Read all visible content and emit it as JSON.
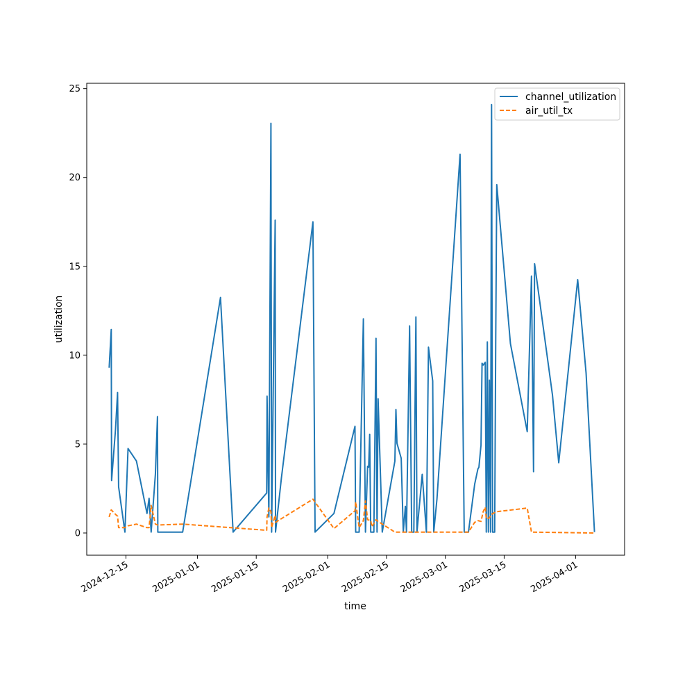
{
  "chart_data": {
    "type": "line",
    "title": "",
    "xlabel": "time",
    "ylabel": "utilization",
    "x_ticks": [
      "2024-12-15",
      "2025-01-01",
      "2025-01-15",
      "2025-02-01",
      "2025-02-15",
      "2025-03-01",
      "2025-03-15",
      "2025-04-01"
    ],
    "y_ticks": [
      0,
      5,
      10,
      15,
      20,
      25
    ],
    "xlim": [
      "2024-12-05T16:00",
      "2025-04-12T16:00"
    ],
    "ylim": [
      -1.25,
      25.3
    ],
    "legend_position": "top-right",
    "grid": false,
    "series": [
      {
        "name": "channel_utilization",
        "color": "#1f77b4",
        "style": "solid",
        "points": [
          [
            "2024-12-11T00:00",
            9.3
          ],
          [
            "2024-12-11T12:00",
            11.45
          ],
          [
            "2024-12-11T14:00",
            2.95
          ],
          [
            "2024-12-12T12:00",
            5.8
          ],
          [
            "2024-12-13T00:00",
            7.9
          ],
          [
            "2024-12-13T06:00",
            2.6
          ],
          [
            "2024-12-14T18:00",
            0.05
          ],
          [
            "2024-12-15T12:00",
            4.75
          ],
          [
            "2024-12-17T12:00",
            4.05
          ],
          [
            "2024-12-20T00:00",
            1.1
          ],
          [
            "2024-12-20T12:00",
            1.95
          ],
          [
            "2024-12-21T00:00",
            0.05
          ],
          [
            "2024-12-22T00:00",
            3.3
          ],
          [
            "2024-12-22T12:00",
            6.55
          ],
          [
            "2024-12-22T14:00",
            0.05
          ],
          [
            "2024-12-28T12:00",
            0.05
          ],
          [
            "2025-01-06T12:00",
            13.25
          ],
          [
            "2025-01-09T12:00",
            0.05
          ],
          [
            "2025-01-17T12:00",
            2.25
          ],
          [
            "2025-01-17T14:00",
            7.7
          ],
          [
            "2025-01-18T00:00",
            0.9
          ],
          [
            "2025-01-18T12:00",
            23.05
          ],
          [
            "2025-01-18T16:00",
            0.05
          ],
          [
            "2025-01-19T12:00",
            17.6
          ],
          [
            "2025-01-19T14:00",
            0.05
          ],
          [
            "2025-01-21T00:00",
            3.1
          ],
          [
            "2025-01-28T12:00",
            17.5
          ],
          [
            "2025-01-29T00:00",
            0.05
          ],
          [
            "2025-02-02T12:00",
            1.1
          ],
          [
            "2025-02-07T12:00",
            6.0
          ],
          [
            "2025-02-07T16:00",
            0.05
          ],
          [
            "2025-02-08T12:00",
            0.05
          ],
          [
            "2025-02-09T12:00",
            12.05
          ],
          [
            "2025-02-10T00:00",
            0.05
          ],
          [
            "2025-02-10T12:00",
            3.75
          ],
          [
            "2025-02-10T18:00",
            3.7
          ],
          [
            "2025-02-11T00:00",
            5.55
          ],
          [
            "2025-02-11T06:00",
            0.05
          ],
          [
            "2025-02-12T00:00",
            0.05
          ],
          [
            "2025-02-12T12:00",
            10.95
          ],
          [
            "2025-02-12T18:00",
            0.05
          ],
          [
            "2025-02-13T00:00",
            7.55
          ],
          [
            "2025-02-14T00:00",
            0.05
          ],
          [
            "2025-02-17T00:00",
            4.05
          ],
          [
            "2025-02-17T06:00",
            6.95
          ],
          [
            "2025-02-17T12:00",
            5.05
          ],
          [
            "2025-02-18T12:00",
            4.2
          ],
          [
            "2025-02-19T00:00",
            0.05
          ],
          [
            "2025-02-19T12:00",
            1.5
          ],
          [
            "2025-02-19T18:00",
            0.05
          ],
          [
            "2025-02-20T12:00",
            11.65
          ],
          [
            "2025-02-21T00:00",
            0.05
          ],
          [
            "2025-02-21T12:00",
            0.05
          ],
          [
            "2025-02-22T00:00",
            12.15
          ],
          [
            "2025-02-22T06:00",
            0.05
          ],
          [
            "2025-02-23T12:00",
            3.3
          ],
          [
            "2025-02-24T12:00",
            0.05
          ],
          [
            "2025-02-25T00:00",
            10.45
          ],
          [
            "2025-02-26T00:00",
            8.55
          ],
          [
            "2025-02-26T06:00",
            0.05
          ],
          [
            "2025-02-27T00:00",
            1.9
          ],
          [
            "2025-03-04T12:00",
            21.3
          ],
          [
            "2025-03-05T12:00",
            0.05
          ],
          [
            "2025-03-06T12:00",
            0.05
          ],
          [
            "2025-03-08T00:00",
            2.75
          ],
          [
            "2025-03-08T18:00",
            3.6
          ],
          [
            "2025-03-09T00:00",
            3.7
          ],
          [
            "2025-03-09T12:00",
            4.95
          ],
          [
            "2025-03-09T18:00",
            9.55
          ],
          [
            "2025-03-10T00:00",
            9.45
          ],
          [
            "2025-03-10T12:00",
            9.6
          ],
          [
            "2025-03-10T18:00",
            0.05
          ],
          [
            "2025-03-11T00:00",
            10.75
          ],
          [
            "2025-03-11T06:00",
            0.05
          ],
          [
            "2025-03-11T12:00",
            8.6
          ],
          [
            "2025-03-11T18:00",
            0.05
          ],
          [
            "2025-03-12T00:00",
            24.1
          ],
          [
            "2025-03-12T06:00",
            0.05
          ],
          [
            "2025-03-12T18:00",
            0.05
          ],
          [
            "2025-03-13T00:00",
            10.85
          ],
          [
            "2025-03-13T06:00",
            19.6
          ],
          [
            "2025-03-16T12:00",
            10.65
          ],
          [
            "2025-03-20T12:00",
            5.7
          ],
          [
            "2025-03-21T12:00",
            14.45
          ],
          [
            "2025-03-22T00:00",
            3.45
          ],
          [
            "2025-03-22T06:00",
            15.15
          ],
          [
            "2025-03-26T12:00",
            7.75
          ],
          [
            "2025-03-28T00:00",
            3.95
          ],
          [
            "2025-04-01T12:00",
            14.25
          ],
          [
            "2025-04-03T12:00",
            9.0
          ],
          [
            "2025-04-05T12:00",
            0.05
          ]
        ]
      },
      {
        "name": "air_util_tx",
        "color": "#ff7f0e",
        "style": "dashed",
        "points": [
          [
            "2024-12-11T00:00",
            0.9
          ],
          [
            "2024-12-11T12:00",
            1.3
          ],
          [
            "2024-12-12T12:00",
            1.05
          ],
          [
            "2024-12-13T00:00",
            0.95
          ],
          [
            "2024-12-13T06:00",
            0.3
          ],
          [
            "2024-12-14T18:00",
            0.3
          ],
          [
            "2024-12-15T12:00",
            0.4
          ],
          [
            "2024-12-17T12:00",
            0.5
          ],
          [
            "2024-12-20T00:00",
            0.3
          ],
          [
            "2024-12-20T12:00",
            0.3
          ],
          [
            "2024-12-21T00:00",
            1.55
          ],
          [
            "2024-12-22T00:00",
            0.5
          ],
          [
            "2024-12-22T14:00",
            0.45
          ],
          [
            "2024-12-28T12:00",
            0.5
          ],
          [
            "2025-01-17T12:00",
            0.15
          ],
          [
            "2025-01-17T14:00",
            0.9
          ],
          [
            "2025-01-18T00:00",
            1.4
          ],
          [
            "2025-01-18T12:00",
            1.2
          ],
          [
            "2025-01-18T16:00",
            0.3
          ],
          [
            "2025-01-19T12:00",
            1.0
          ],
          [
            "2025-01-19T14:00",
            0.6
          ],
          [
            "2025-01-28T12:00",
            1.9
          ],
          [
            "2025-02-02T12:00",
            0.25
          ],
          [
            "2025-02-07T12:00",
            1.25
          ],
          [
            "2025-02-07T16:00",
            1.75
          ],
          [
            "2025-02-08T12:00",
            0.3
          ],
          [
            "2025-02-09T12:00",
            0.7
          ],
          [
            "2025-02-10T00:00",
            1.8
          ],
          [
            "2025-02-10T12:00",
            0.75
          ],
          [
            "2025-02-11T06:00",
            0.7
          ],
          [
            "2025-02-11T12:00",
            0.35
          ],
          [
            "2025-02-12T12:00",
            0.75
          ],
          [
            "2025-02-13T00:00",
            0.65
          ],
          [
            "2025-02-17T00:00",
            0.05
          ],
          [
            "2025-02-21T00:00",
            0.05
          ],
          [
            "2025-03-06T12:00",
            0.05
          ],
          [
            "2025-03-08T00:00",
            0.6
          ],
          [
            "2025-03-08T18:00",
            0.7
          ],
          [
            "2025-03-09T12:00",
            0.65
          ],
          [
            "2025-03-10T00:00",
            1.2
          ],
          [
            "2025-03-10T12:00",
            1.45
          ],
          [
            "2025-03-10T18:00",
            0.8
          ],
          [
            "2025-03-11T12:00",
            0.85
          ],
          [
            "2025-03-12T00:00",
            1.05
          ],
          [
            "2025-03-12T18:00",
            1.15
          ],
          [
            "2025-03-13T06:00",
            1.2
          ],
          [
            "2025-03-20T12:00",
            1.4
          ],
          [
            "2025-03-21T12:00",
            0.05
          ],
          [
            "2025-04-05T12:00",
            0.0
          ]
        ]
      }
    ]
  }
}
